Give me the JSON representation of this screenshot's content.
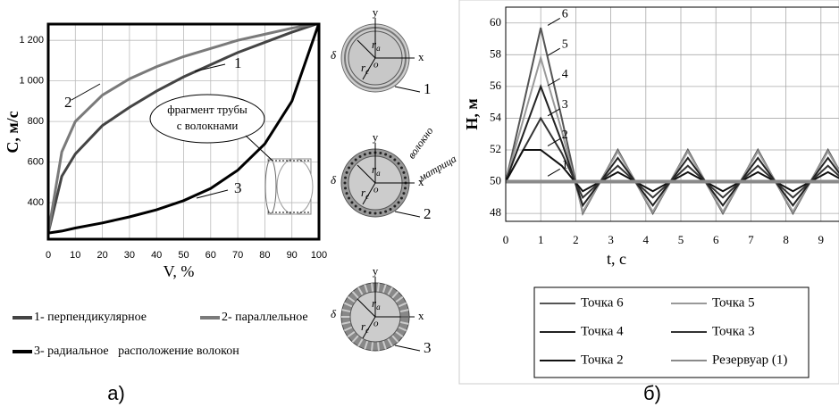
{
  "chart_data": [
    {
      "type": "line",
      "xlabel": "V, %",
      "ylabel": "С, м/с",
      "x": [
        0,
        5,
        10,
        20,
        30,
        40,
        50,
        60,
        70,
        80,
        90,
        100
      ],
      "xlim": [
        0,
        100
      ],
      "xticks": [
        0,
        10,
        20,
        30,
        40,
        50,
        60,
        70,
        80,
        90,
        100
      ],
      "ylim": [
        220,
        1280
      ],
      "yticks": [
        400,
        600,
        800,
        {
          "value": 1000,
          "label": "1 000"
        },
        {
          "value": 1200,
          "label": "1 200"
        }
      ],
      "grid": true,
      "series": [
        {
          "name": "1- перпендикулярное",
          "tag": "1",
          "color": "#444444",
          "values": [
            250,
            530,
            640,
            780,
            870,
            950,
            1020,
            1080,
            1140,
            1190,
            1240,
            1285
          ]
        },
        {
          "name": "2- параллельное",
          "tag": "2",
          "color": "#7a7a7a",
          "values": [
            250,
            650,
            800,
            930,
            1010,
            1070,
            1120,
            1160,
            1200,
            1230,
            1260,
            1285
          ]
        },
        {
          "name": "3- радиальное   расположение волокон",
          "tag": "3",
          "color": "#000000",
          "values": [
            250,
            260,
            275,
            300,
            330,
            365,
            410,
            470,
            560,
            690,
            900,
            1285
          ]
        }
      ],
      "annotation": [
        "фрагмент трубы",
        "с волокнами"
      ]
    },
    {
      "type": "line",
      "xlabel": "t, c",
      "ylabel": "H, м",
      "x": [
        0,
        0.5,
        1,
        1.6,
        2.2,
        2.7,
        3.2,
        3.7,
        4.2,
        4.7,
        5.2,
        5.7,
        6.2,
        6.7,
        7.2,
        7.7,
        8.2,
        8.7,
        9.2,
        9.7,
        10
      ],
      "xlim": [
        0,
        10
      ],
      "xticks": [
        0,
        1,
        2,
        3,
        4,
        5,
        6,
        7,
        8,
        9,
        10
      ],
      "ylim": [
        47.5,
        61
      ],
      "yticks": [
        48,
        50,
        52,
        54,
        56,
        58,
        60
      ],
      "grid": true,
      "series": [
        {
          "name": "Точка 6",
          "tag": "6",
          "color": "#555555",
          "values": [
            50,
            54.8,
            59.7,
            54,
            48,
            50,
            52,
            50,
            48,
            50,
            52,
            50,
            48,
            50,
            52,
            50,
            48,
            50,
            52,
            50,
            49
          ]
        },
        {
          "name": "Точка 5",
          "tag": "5",
          "color": "#999999",
          "values": [
            50,
            53.9,
            57.8,
            53.2,
            48.1,
            50,
            51.9,
            50,
            48.1,
            50,
            51.9,
            50,
            48.1,
            50,
            51.9,
            50,
            48.1,
            50,
            51.9,
            50,
            49.1
          ]
        },
        {
          "name": "Точка 4",
          "tag": "4",
          "color": "#222222",
          "values": [
            50,
            53,
            56,
            52.5,
            48.5,
            50,
            51.5,
            50,
            48.5,
            50,
            51.5,
            50,
            48.5,
            50,
            51.5,
            50,
            48.5,
            50,
            51.5,
            50,
            49.3
          ]
        },
        {
          "name": "Точка 3",
          "tag": "3",
          "color": "#333333",
          "values": [
            50,
            52,
            54,
            51.8,
            49,
            50,
            51,
            50,
            49,
            50,
            51,
            50,
            49,
            50,
            51,
            50,
            49,
            50,
            51,
            50,
            49.5
          ]
        },
        {
          "name": "Точка 2",
          "tag": "2",
          "color": "#111111",
          "values": [
            50,
            52,
            52,
            51,
            49.4,
            50,
            50.6,
            50,
            49.4,
            50,
            50.6,
            50,
            49.4,
            50,
            50.6,
            50,
            49.4,
            50,
            50.6,
            50,
            49.7
          ]
        },
        {
          "name": "Резервуар (1)",
          "tag": "1",
          "color": "#8a8a8a",
          "values": [
            50,
            50,
            50,
            50,
            50,
            50,
            50,
            50,
            50,
            50,
            50,
            50,
            50,
            50,
            50,
            50,
            50,
            50,
            50,
            50,
            50
          ]
        }
      ]
    }
  ],
  "diagrams": [
    {
      "number": "1",
      "y": "y",
      "x": "x",
      "delta": "δ",
      "ra": [
        "r",
        "a"
      ],
      "rc": [
        "r",
        "c"
      ],
      "o": "o"
    },
    {
      "number": "2",
      "y": "y",
      "x": "x",
      "delta": "δ",
      "ra": [
        "r",
        "a"
      ],
      "rc": [
        "r",
        "c"
      ],
      "o": "o",
      "fiber": "волокно",
      "matrix": "матрица"
    },
    {
      "number": "3",
      "y": "y",
      "x": "x",
      "delta": "δ",
      "ra": [
        "r",
        "a"
      ],
      "rc": [
        "r",
        "c"
      ],
      "o": "o"
    }
  ],
  "panels": [
    "а)",
    "б)"
  ]
}
